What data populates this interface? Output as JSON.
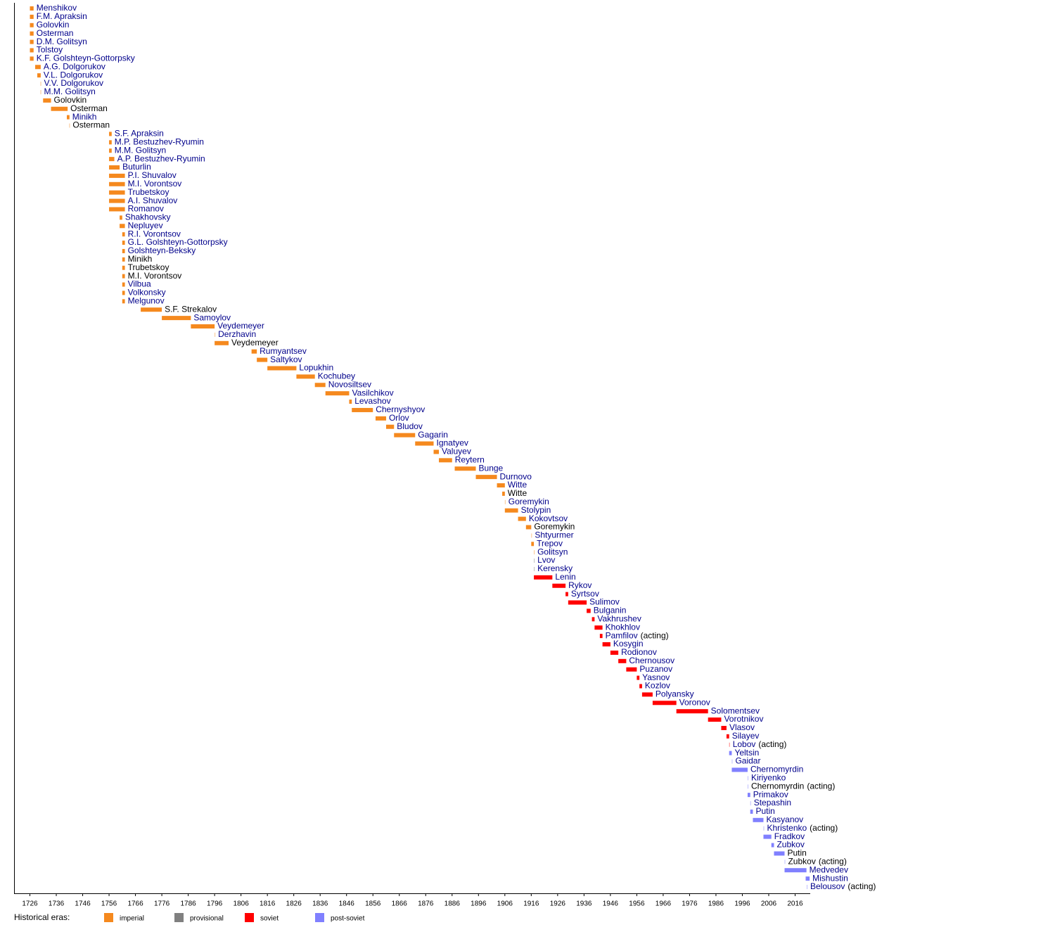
{
  "chart_data": {
    "type": "timeline",
    "xlim": [
      1720,
      2022
    ],
    "xticks": [
      1726,
      1736,
      1746,
      1756,
      1766,
      1776,
      1786,
      1796,
      1806,
      1816,
      1826,
      1836,
      1846,
      1856,
      1866,
      1876,
      1886,
      1896,
      1906,
      1916,
      1926,
      1936,
      1946,
      1956,
      1966,
      1976,
      1986,
      1996,
      2006,
      2016
    ],
    "legend_title": "Historical eras:",
    "eras": [
      {
        "name": "imperial",
        "color": "#f5891e"
      },
      {
        "name": "provisional",
        "color": "#808080"
      },
      {
        "name": "soviet",
        "color": "#ff0000"
      },
      {
        "name": "post-soviet",
        "color": "#8080ff"
      }
    ],
    "link_color": "#00008b",
    "text_color": "#000000",
    "bars": [
      {
        "label": "Menshikov",
        "start": 1726,
        "end": 1727.4,
        "era": "imperial",
        "link": true
      },
      {
        "label": "F.M. Apraksin",
        "start": 1726,
        "end": 1727.4,
        "era": "imperial",
        "link": true
      },
      {
        "label": "Golovkin",
        "start": 1726,
        "end": 1727.4,
        "era": "imperial",
        "link": true
      },
      {
        "label": "Osterman",
        "start": 1726,
        "end": 1727.4,
        "era": "imperial",
        "link": true
      },
      {
        "label": "D.M. Golitsyn",
        "start": 1726,
        "end": 1727.4,
        "era": "imperial",
        "link": true
      },
      {
        "label": "Tolstoy",
        "start": 1726,
        "end": 1727.4,
        "era": "imperial",
        "link": true
      },
      {
        "label": "K.F. Golshteyn-Gottorpsky",
        "start": 1726,
        "end": 1727.4,
        "era": "imperial",
        "link": true
      },
      {
        "label": "A.G. Dolgorukov",
        "start": 1728,
        "end": 1730.1,
        "era": "imperial",
        "link": true
      },
      {
        "label": "V.L. Dolgorukov",
        "start": 1728.8,
        "end": 1730.1,
        "era": "imperial",
        "link": true
      },
      {
        "label": "V.V. Dolgorukov",
        "start": 1730,
        "end": 1730,
        "era": "imperial",
        "link": true
      },
      {
        "label": "M.M. Golitsyn",
        "start": 1730,
        "end": 1730,
        "era": "imperial",
        "link": true
      },
      {
        "label": "Golovkin",
        "start": 1731,
        "end": 1734,
        "era": "imperial",
        "link": false
      },
      {
        "label": "Osterman",
        "start": 1734,
        "end": 1740.3,
        "era": "imperial",
        "link": false
      },
      {
        "label": "Minikh",
        "start": 1740,
        "end": 1741,
        "era": "imperial",
        "link": true
      },
      {
        "label": "Osterman",
        "start": 1740.9,
        "end": 1740.9,
        "era": "imperial",
        "link": false
      },
      {
        "label": "S.F. Apraksin",
        "start": 1756,
        "end": 1757,
        "era": "imperial",
        "link": true
      },
      {
        "label": "M.P. Bestuzhev-Ryumin",
        "start": 1756,
        "end": 1757,
        "era": "imperial",
        "link": true
      },
      {
        "label": "M.M. Golitsyn",
        "start": 1756,
        "end": 1757,
        "era": "imperial",
        "link": true
      },
      {
        "label": "A.P. Bestuzhev-Ryumin",
        "start": 1756,
        "end": 1758,
        "era": "imperial",
        "link": true
      },
      {
        "label": "Buturlin",
        "start": 1756,
        "end": 1760,
        "era": "imperial",
        "link": true
      },
      {
        "label": "P.I. Shuvalov",
        "start": 1756,
        "end": 1762,
        "era": "imperial",
        "link": true
      },
      {
        "label": "M.I. Vorontsov",
        "start": 1756,
        "end": 1762,
        "era": "imperial",
        "link": true
      },
      {
        "label": "Trubetskoy",
        "start": 1756,
        "end": 1762,
        "era": "imperial",
        "link": true
      },
      {
        "label": "A.I. Shuvalov",
        "start": 1756,
        "end": 1762,
        "era": "imperial",
        "link": true
      },
      {
        "label": "Romanov",
        "start": 1756,
        "end": 1762,
        "era": "imperial",
        "link": true
      },
      {
        "label": "Shakhovsky",
        "start": 1760,
        "end": 1761,
        "era": "imperial",
        "link": true
      },
      {
        "label": "Nepluyev",
        "start": 1760,
        "end": 1762,
        "era": "imperial",
        "link": true
      },
      {
        "label": "R.I. Vorontsov",
        "start": 1761,
        "end": 1762,
        "era": "imperial",
        "link": true
      },
      {
        "label": "G.L. Golshteyn-Gottorpsky",
        "start": 1761,
        "end": 1762,
        "era": "imperial",
        "link": true
      },
      {
        "label": "Golshteyn-Beksky",
        "start": 1761,
        "end": 1762,
        "era": "imperial",
        "link": true
      },
      {
        "label": "Minikh",
        "start": 1761,
        "end": 1762,
        "era": "imperial",
        "link": false
      },
      {
        "label": "Trubetskoy",
        "start": 1761,
        "end": 1762,
        "era": "imperial",
        "link": false
      },
      {
        "label": "M.I. Vorontsov",
        "start": 1761,
        "end": 1762,
        "era": "imperial",
        "link": false
      },
      {
        "label": "Vilbua",
        "start": 1761,
        "end": 1762,
        "era": "imperial",
        "link": true
      },
      {
        "label": "Volkonsky",
        "start": 1761,
        "end": 1762,
        "era": "imperial",
        "link": true
      },
      {
        "label": "Melgunov",
        "start": 1761,
        "end": 1762,
        "era": "imperial",
        "link": true
      },
      {
        "label": "S.F. Strekalov",
        "start": 1768,
        "end": 1776,
        "era": "imperial",
        "link": false
      },
      {
        "label": "Samoylov",
        "start": 1776,
        "end": 1787,
        "era": "imperial",
        "link": true
      },
      {
        "label": "Veydemeyer",
        "start": 1787,
        "end": 1796,
        "era": "imperial",
        "link": true
      },
      {
        "label": "Derzhavin",
        "start": 1796,
        "end": 1796,
        "era": "imperial",
        "link": true
      },
      {
        "label": "Veydemeyer",
        "start": 1796,
        "end": 1801.3,
        "era": "imperial",
        "link": false
      },
      {
        "label": "Rumyantsev",
        "start": 1810,
        "end": 1812,
        "era": "imperial",
        "link": true
      },
      {
        "label": "Saltykov",
        "start": 1812,
        "end": 1816,
        "era": "imperial",
        "link": true
      },
      {
        "label": "Lopukhin",
        "start": 1816,
        "end": 1827,
        "era": "imperial",
        "link": true
      },
      {
        "label": "Kochubey",
        "start": 1827,
        "end": 1834,
        "era": "imperial",
        "link": true
      },
      {
        "label": "Novosiltsev",
        "start": 1834,
        "end": 1838,
        "era": "imperial",
        "link": true
      },
      {
        "label": "Vasilchikov",
        "start": 1838,
        "end": 1847,
        "era": "imperial",
        "link": true
      },
      {
        "label": "Levashov",
        "start": 1847,
        "end": 1848,
        "era": "imperial",
        "link": true
      },
      {
        "label": "Chernyshyov",
        "start": 1848,
        "end": 1856,
        "era": "imperial",
        "link": true
      },
      {
        "label": "Orlov",
        "start": 1857,
        "end": 1861,
        "era": "imperial",
        "link": true
      },
      {
        "label": "Bludov",
        "start": 1861,
        "end": 1864,
        "era": "imperial",
        "link": true
      },
      {
        "label": "Gagarin",
        "start": 1864,
        "end": 1872,
        "era": "imperial",
        "link": true
      },
      {
        "label": "Ignatyev",
        "start": 1872,
        "end": 1879,
        "era": "imperial",
        "link": true
      },
      {
        "label": "Valuyev",
        "start": 1879,
        "end": 1881,
        "era": "imperial",
        "link": true
      },
      {
        "label": "Reytern",
        "start": 1881,
        "end": 1886,
        "era": "imperial",
        "link": true
      },
      {
        "label": "Bunge",
        "start": 1887,
        "end": 1895,
        "era": "imperial",
        "link": true
      },
      {
        "label": "Durnovo",
        "start": 1895,
        "end": 1903,
        "era": "imperial",
        "link": true
      },
      {
        "label": "Witte",
        "start": 1903,
        "end": 1906,
        "era": "imperial",
        "link": true
      },
      {
        "label": "Witte",
        "start": 1905,
        "end": 1906,
        "era": "imperial",
        "link": false
      },
      {
        "label": "Goremykin",
        "start": 1906,
        "end": 1906,
        "era": "imperial",
        "link": true
      },
      {
        "label": "Stolypin",
        "start": 1906,
        "end": 1911,
        "era": "imperial",
        "link": true
      },
      {
        "label": "Kokovtsov",
        "start": 1911,
        "end": 1914,
        "era": "imperial",
        "link": true
      },
      {
        "label": "Goremykin",
        "start": 1914,
        "end": 1916,
        "era": "imperial",
        "link": false
      },
      {
        "label": "Shtyurmer",
        "start": 1916,
        "end": 1916,
        "era": "imperial",
        "link": true
      },
      {
        "label": "Trepov",
        "start": 1916,
        "end": 1917,
        "era": "imperial",
        "link": true
      },
      {
        "label": "Golitsyn",
        "start": 1917,
        "end": 1917,
        "era": "imperial",
        "link": true
      },
      {
        "label": "Lvov",
        "start": 1917,
        "end": 1917,
        "era": "provisional",
        "link": true
      },
      {
        "label": "Kerensky",
        "start": 1917,
        "end": 1917,
        "era": "provisional",
        "link": true
      },
      {
        "label": "Lenin",
        "start": 1917,
        "end": 1924,
        "era": "soviet",
        "link": true
      },
      {
        "label": "Rykov",
        "start": 1924,
        "end": 1929,
        "era": "soviet",
        "link": true
      },
      {
        "label": "Syrtsov",
        "start": 1929,
        "end": 1930,
        "era": "soviet",
        "link": true
      },
      {
        "label": "Sulimov",
        "start": 1930,
        "end": 1937,
        "era": "soviet",
        "link": true
      },
      {
        "label": "Bulganin",
        "start": 1937,
        "end": 1938.5,
        "era": "soviet",
        "link": true
      },
      {
        "label": "Vakhrushev",
        "start": 1939,
        "end": 1940,
        "era": "soviet",
        "link": true
      },
      {
        "label": "Khokhlov",
        "start": 1940,
        "end": 1943,
        "era": "soviet",
        "link": true
      },
      {
        "label": "Pamfilov",
        "note": "(acting)",
        "start": 1942,
        "end": 1943,
        "era": "soviet",
        "link": true
      },
      {
        "label": "Kosygin",
        "start": 1943,
        "end": 1946,
        "era": "soviet",
        "link": true
      },
      {
        "label": "Rodionov",
        "start": 1946,
        "end": 1949,
        "era": "soviet",
        "link": true
      },
      {
        "label": "Chernousov",
        "start": 1949,
        "end": 1952,
        "era": "soviet",
        "link": true
      },
      {
        "label": "Puzanov",
        "start": 1952,
        "end": 1956,
        "era": "soviet",
        "link": true
      },
      {
        "label": "Yasnov",
        "start": 1956,
        "end": 1957,
        "era": "soviet",
        "link": true
      },
      {
        "label": "Kozlov",
        "start": 1957,
        "end": 1958,
        "era": "soviet",
        "link": true
      },
      {
        "label": "Polyansky",
        "start": 1958,
        "end": 1962,
        "era": "soviet",
        "link": true
      },
      {
        "label": "Voronov",
        "start": 1962,
        "end": 1971,
        "era": "soviet",
        "link": true
      },
      {
        "label": "Solomentsev",
        "start": 1971,
        "end": 1983,
        "era": "soviet",
        "link": true
      },
      {
        "label": "Vorotnikov",
        "start": 1983,
        "end": 1988,
        "era": "soviet",
        "link": true
      },
      {
        "label": "Vlasov",
        "start": 1988,
        "end": 1990,
        "era": "soviet",
        "link": true
      },
      {
        "label": "Silayev",
        "start": 1990,
        "end": 1991,
        "era": "soviet",
        "link": true
      },
      {
        "label": "Lobov",
        "note": "(acting)",
        "start": 1991,
        "end": 1991,
        "era": "soviet",
        "link": true
      },
      {
        "label": "Yeltsin",
        "start": 1991,
        "end": 1992,
        "era": "post-soviet",
        "link": true
      },
      {
        "label": "Gaidar",
        "start": 1992,
        "end": 1992,
        "era": "post-soviet",
        "link": true
      },
      {
        "label": "Chernomyrdin",
        "start": 1992,
        "end": 1998,
        "era": "post-soviet",
        "link": true
      },
      {
        "label": "Kiriyenko",
        "start": 1998,
        "end": 1998,
        "era": "post-soviet",
        "link": true
      },
      {
        "label": "Chernomyrdin",
        "note": "(acting)",
        "start": 1998,
        "end": 1998,
        "era": "post-soviet",
        "link": false
      },
      {
        "label": "Primakov",
        "start": 1998,
        "end": 1999,
        "era": "post-soviet",
        "link": true
      },
      {
        "label": "Stepashin",
        "start": 1999,
        "end": 1999,
        "era": "post-soviet",
        "link": true
      },
      {
        "label": "Putin",
        "start": 1999,
        "end": 2000,
        "era": "post-soviet",
        "link": true
      },
      {
        "label": "Kasyanov",
        "start": 2000,
        "end": 2004,
        "era": "post-soviet",
        "link": true
      },
      {
        "label": "Khristenko",
        "note": "(acting)",
        "start": 2004,
        "end": 2004,
        "era": "post-soviet",
        "link": true
      },
      {
        "label": "Fradkov",
        "start": 2004,
        "end": 2007,
        "era": "post-soviet",
        "link": true
      },
      {
        "label": "Zubkov",
        "start": 2007,
        "end": 2008,
        "era": "post-soviet",
        "link": true
      },
      {
        "label": "Putin",
        "start": 2008,
        "end": 2012,
        "era": "post-soviet",
        "link": false
      },
      {
        "label": "Zubkov",
        "note": "(acting)",
        "start": 2012,
        "end": 2012,
        "era": "post-soviet",
        "link": false
      },
      {
        "label": "Medvedev",
        "start": 2012,
        "end": 2020.3,
        "era": "post-soviet",
        "link": true
      },
      {
        "label": "Mishustin",
        "start": 2020,
        "end": 2021.5,
        "era": "post-soviet",
        "link": true
      },
      {
        "label": "Belousov",
        "note": "(acting)",
        "start": 2020.4,
        "end": 2020.4,
        "era": "post-soviet",
        "link": true
      }
    ]
  }
}
